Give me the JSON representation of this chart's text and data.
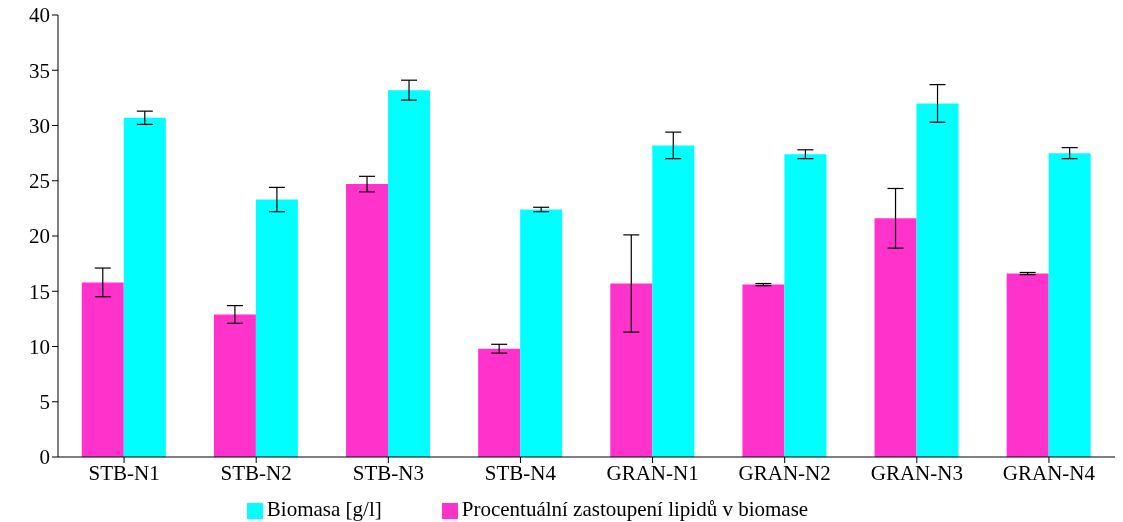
{
  "chart_data": {
    "type": "bar",
    "categories": [
      "STB-N1",
      "STB-N2",
      "STB-N3",
      "STB-N4",
      "GRAN-N1",
      "GRAN-N2",
      "GRAN-N3",
      "GRAN-N4"
    ],
    "series": [
      {
        "name": "Procentuální zastoupení lipidů v biomase",
        "color": "#ff33cc",
        "values": [
          15.8,
          12.9,
          24.7,
          9.8,
          15.7,
          15.6,
          21.6,
          16.6
        ],
        "errors": [
          1.3,
          0.8,
          0.7,
          0.4,
          4.4,
          0.1,
          2.7,
          0.1
        ]
      },
      {
        "name": "Biomasa [g/l]",
        "color": "#00ffff",
        "values": [
          30.7,
          23.3,
          33.2,
          22.4,
          28.2,
          27.4,
          32.0,
          27.5
        ],
        "errors": [
          0.6,
          1.1,
          0.9,
          0.2,
          1.2,
          0.4,
          1.7,
          0.5
        ]
      }
    ],
    "ylim": [
      0,
      40
    ],
    "yticks": [
      0,
      5,
      10,
      15,
      20,
      25,
      30,
      35,
      40
    ],
    "grid": false,
    "legend": "bottom"
  }
}
